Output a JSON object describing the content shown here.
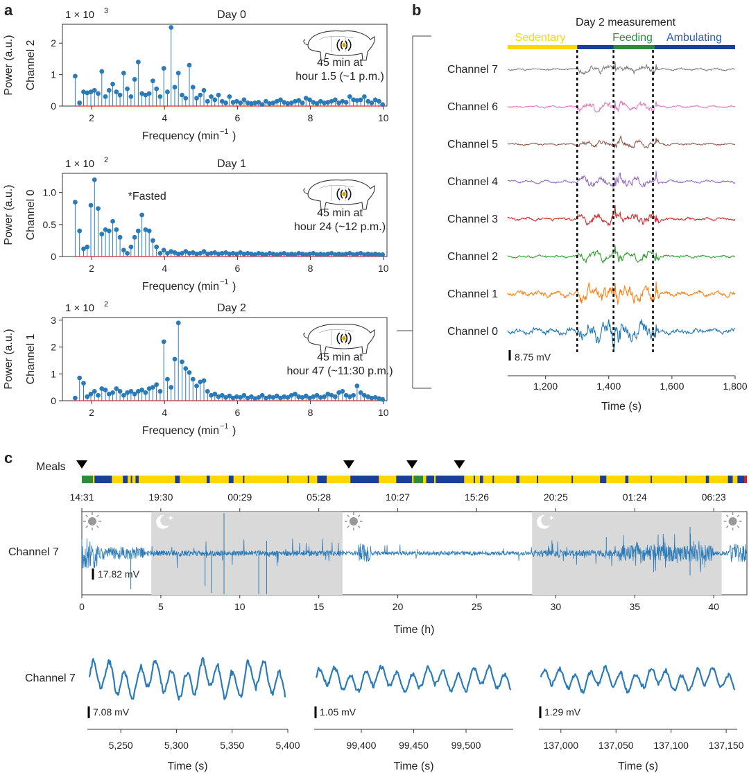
{
  "colors": {
    "stem": "#2b7bb9",
    "baseline": "#d62728",
    "ch7": "#7f7f7f",
    "ch6": "#e377c2",
    "ch5": "#8c564b",
    "ch4": "#9467bd",
    "ch3": "#d62728",
    "ch2": "#2ca02c",
    "ch1": "#ff7f0e",
    "ch0": "#1f77b4",
    "sedentary": "#ffd700",
    "feeding": "#2e8b3a",
    "ambulating": "#1a3f99",
    "night": "#d9d9d9",
    "trace": "#2b7bb9"
  },
  "panel_labels": {
    "a": "a",
    "b": "b",
    "c": "c"
  },
  "chart_data": [
    {
      "id": "a-day0",
      "type": "stem",
      "title": "Day 0",
      "multiplier": "1 × 10",
      "multiplier_exp": "3",
      "ylabel1": "Power (a.u.)",
      "ylabel2": "Channel 2",
      "xlabel": "Frequency (min",
      "xlabel_sup": "−1",
      "xlabel_end": ")",
      "annotation": [
        "45 min at",
        "hour 1.5 (~1 p.m.)"
      ],
      "xlim": [
        1.2,
        10.1
      ],
      "ylim": [
        0,
        2.6
      ],
      "xticks": [
        2,
        4,
        6,
        8,
        10
      ],
      "yticks": [
        0,
        1,
        2
      ],
      "x": [
        1.55,
        1.67,
        1.78,
        1.88,
        1.98,
        2.08,
        2.18,
        2.28,
        2.38,
        2.48,
        2.58,
        2.68,
        2.78,
        2.88,
        2.98,
        3.08,
        3.18,
        3.28,
        3.38,
        3.48,
        3.58,
        3.68,
        3.78,
        3.88,
        3.98,
        4.08,
        4.18,
        4.28,
        4.38,
        4.48,
        4.58,
        4.68,
        4.78,
        4.88,
        4.98,
        5.08,
        5.18,
        5.28,
        5.38,
        5.48,
        5.58,
        5.68,
        5.78,
        5.88,
        5.98,
        6.08,
        6.18,
        6.28,
        6.38,
        6.48,
        6.58,
        6.68,
        6.78,
        6.88,
        6.98,
        7.08,
        7.18,
        7.28,
        7.38,
        7.48,
        7.58,
        7.68,
        7.78,
        7.88,
        7.98,
        8.08,
        8.18,
        8.28,
        8.38,
        8.48,
        8.58,
        8.68,
        8.78,
        8.88,
        8.98,
        9.08,
        9.18,
        9.28,
        9.38,
        9.48,
        9.58,
        9.68,
        9.78,
        9.88,
        9.98
      ],
      "y": [
        0.95,
        0.1,
        0.45,
        0.42,
        0.45,
        0.5,
        0.4,
        1.1,
        0.3,
        0.5,
        0.7,
        0.45,
        0.35,
        1.05,
        0.55,
        0.3,
        0.85,
        1.4,
        0.4,
        0.35,
        0.4,
        0.8,
        0.55,
        0.3,
        1.2,
        0.45,
        2.5,
        0.6,
        1.05,
        0.35,
        0.25,
        1.3,
        0.6,
        0.25,
        0.35,
        0.5,
        0.15,
        0.3,
        0.2,
        0.35,
        0.15,
        0.1,
        0.3,
        0.12,
        0.15,
        0.1,
        0.2,
        0.1,
        0.08,
        0.1,
        0.12,
        0.05,
        0.15,
        0.08,
        0.1,
        0.15,
        0.2,
        0.12,
        0.08,
        0.1,
        0.15,
        0.18,
        0.1,
        0.25,
        0.2,
        0.12,
        0.08,
        0.15,
        0.1,
        0.12,
        0.15,
        0.2,
        0.1,
        0.15,
        0.12,
        0.3,
        0.2,
        0.18,
        0.2,
        0.3,
        0.15,
        0.1,
        0.2,
        0.15,
        0.05
      ]
    },
    {
      "id": "a-day1",
      "type": "stem",
      "title": "Day 1",
      "multiplier": "1 × 10",
      "multiplier_exp": "2",
      "ylabel1": "Power (a.u.)",
      "ylabel2": "Channel 0",
      "xlabel": "Frequency (min",
      "xlabel_sup": "−1",
      "xlabel_end": ")",
      "note": "*Fasted",
      "annotation": [
        "45 min at",
        "hour 24 (~12 p.m.)"
      ],
      "xlim": [
        1.2,
        10.1
      ],
      "ylim": [
        0,
        1.3
      ],
      "xticks": [
        2,
        4,
        6,
        8,
        10
      ],
      "yticks": [
        0,
        0.5,
        1.0
      ],
      "ytick_labels": [
        "0",
        "0.5",
        "1.0"
      ],
      "x": [
        1.55,
        1.67,
        1.78,
        1.88,
        1.98,
        2.08,
        2.18,
        2.28,
        2.38,
        2.48,
        2.58,
        2.68,
        2.78,
        2.88,
        2.98,
        3.08,
        3.18,
        3.28,
        3.38,
        3.48,
        3.58,
        3.68,
        3.78,
        3.88,
        3.98,
        4.08,
        4.18,
        4.28,
        4.38,
        4.48,
        4.58,
        4.68,
        4.78,
        4.88,
        4.98,
        5.08,
        5.18,
        5.28,
        5.38,
        5.48,
        5.58,
        5.68,
        5.78,
        5.88,
        5.98,
        6.08,
        6.18,
        6.28,
        6.38,
        6.48,
        6.58,
        6.68,
        6.78,
        6.88,
        6.98,
        7.08,
        7.18,
        7.28,
        7.38,
        7.48,
        7.58,
        7.68,
        7.78,
        7.88,
        7.98,
        8.08,
        8.18,
        8.28,
        8.38,
        8.48,
        8.58,
        8.68,
        8.78,
        8.88,
        8.98,
        9.08,
        9.18,
        9.28,
        9.38,
        9.48,
        9.58,
        9.68,
        9.78,
        9.88,
        9.98
      ],
      "y": [
        0.85,
        0.4,
        0.12,
        0.15,
        0.8,
        1.2,
        0.75,
        0.35,
        0.42,
        0.4,
        0.55,
        0.42,
        0.3,
        0.1,
        0.05,
        0.15,
        0.3,
        0.4,
        0.65,
        0.42,
        0.4,
        0.25,
        0.15,
        0.05,
        0.1,
        0.05,
        0.08,
        0.06,
        0.04,
        0.05,
        0.08,
        0.05,
        0.06,
        0.04,
        0.05,
        0.08,
        0.04,
        0.05,
        0.06,
        0.04,
        0.05,
        0.06,
        0.04,
        0.05,
        0.04,
        0.06,
        0.04,
        0.05,
        0.04,
        0.03,
        0.05,
        0.04,
        0.03,
        0.05,
        0.04,
        0.03,
        0.04,
        0.05,
        0.03,
        0.04,
        0.03,
        0.05,
        0.04,
        0.03,
        0.04,
        0.05,
        0.03,
        0.04,
        0.03,
        0.04,
        0.05,
        0.03,
        0.04,
        0.03,
        0.04,
        0.05,
        0.03,
        0.04,
        0.05,
        0.03,
        0.04,
        0.03,
        0.04,
        0.03,
        0.03
      ]
    },
    {
      "id": "a-day2",
      "type": "stem",
      "title": "Day 2",
      "multiplier": "1 × 10",
      "multiplier_exp": "2",
      "ylabel1": "Power (a.u.)",
      "ylabel2": "Channel 1",
      "xlabel": "Frequency (min",
      "xlabel_sup": "−1",
      "xlabel_end": ")",
      "annotation": [
        "45 min at",
        "hour 47 (~11:30 p.m.)"
      ],
      "xlim": [
        1.2,
        10.1
      ],
      "ylim": [
        0,
        3.1
      ],
      "xticks": [
        2,
        4,
        6,
        8,
        10
      ],
      "yticks": [
        0,
        1,
        2,
        3
      ],
      "x": [
        1.55,
        1.67,
        1.78,
        1.88,
        1.98,
        2.08,
        2.18,
        2.28,
        2.38,
        2.48,
        2.58,
        2.68,
        2.78,
        2.88,
        2.98,
        3.08,
        3.18,
        3.28,
        3.38,
        3.48,
        3.58,
        3.68,
        3.78,
        3.88,
        3.98,
        4.08,
        4.18,
        4.28,
        4.38,
        4.48,
        4.58,
        4.68,
        4.78,
        4.88,
        4.98,
        5.08,
        5.18,
        5.28,
        5.38,
        5.48,
        5.58,
        5.68,
        5.78,
        5.88,
        5.98,
        6.08,
        6.18,
        6.28,
        6.38,
        6.48,
        6.58,
        6.68,
        6.78,
        6.88,
        6.98,
        7.08,
        7.18,
        7.28,
        7.38,
        7.48,
        7.58,
        7.68,
        7.78,
        7.88,
        7.98,
        8.08,
        8.18,
        8.28,
        8.38,
        8.48,
        8.58,
        8.68,
        8.78,
        8.88,
        8.98,
        9.08,
        9.18,
        9.28,
        9.38,
        9.48,
        9.58,
        9.68,
        9.78,
        9.88,
        9.98
      ],
      "y": [
        0.1,
        0.85,
        0.65,
        0.15,
        0.25,
        0.35,
        0.2,
        0.45,
        0.4,
        0.25,
        0.3,
        0.45,
        0.35,
        0.2,
        0.3,
        0.35,
        0.25,
        0.35,
        0.4,
        0.3,
        0.45,
        0.5,
        0.6,
        0.35,
        2.2,
        0.8,
        0.5,
        1.55,
        2.9,
        1.45,
        1.2,
        1.05,
        0.8,
        0.55,
        0.7,
        0.75,
        0.35,
        0.2,
        0.25,
        0.15,
        0.2,
        0.12,
        0.18,
        0.1,
        0.15,
        0.12,
        0.2,
        0.1,
        0.15,
        0.08,
        0.12,
        0.2,
        0.1,
        0.15,
        0.12,
        0.18,
        0.1,
        0.15,
        0.12,
        0.2,
        0.25,
        0.15,
        0.12,
        0.18,
        0.1,
        0.15,
        0.2,
        0.12,
        0.15,
        0.25,
        0.2,
        0.15,
        0.3,
        0.35,
        0.2,
        0.15,
        0.2,
        0.55,
        0.3,
        0.2,
        0.15,
        0.1,
        0.12,
        0.08,
        0.05
      ]
    },
    {
      "id": "b",
      "type": "line",
      "title": "Day 2 measurement",
      "states": [
        {
          "name": "Sedentary",
          "from": 1080,
          "to": 1300,
          "color": "#ffd700"
        },
        {
          "name": "Feeding",
          "from": 1415,
          "to": 1545,
          "color": "#2e8b3a"
        },
        {
          "name": "Ambulating",
          "from": 1300,
          "to": 1800,
          "color": "#1a3f99"
        }
      ],
      "channels": [
        "Channel 7",
        "Channel 6",
        "Channel 5",
        "Channel 4",
        "Channel 3",
        "Channel 2",
        "Channel 1",
        "Channel 0"
      ],
      "event_lines": [
        1300,
        1415,
        1540
      ],
      "scale_bar": "8.75 mV",
      "xlabel": "Time (s)",
      "xlim": [
        1080,
        1800
      ],
      "xticks": [
        1200,
        1400,
        1600,
        1800
      ],
      "xtick_labels": [
        "1,200",
        "1,400",
        "1,600",
        "1,800"
      ]
    },
    {
      "id": "c-main",
      "type": "line",
      "meals_label": "Meals",
      "meal_times_h": [
        0,
        16.9,
        20.9,
        23.9
      ],
      "clock_labels": [
        "14:31",
        "19:30",
        "00:29",
        "05:28",
        "10:27",
        "15:26",
        "20:25",
        "01:24",
        "06:23"
      ],
      "clock_hours": [
        0,
        5,
        10,
        15,
        20,
        25,
        30,
        35,
        40
      ],
      "night_spans_h": [
        [
          4.4,
          16.5
        ],
        [
          28.5,
          40.5
        ]
      ],
      "channel": "Channel 7",
      "scale_bar": "17.82 mV",
      "xlabel": "Time (h)",
      "xlim": [
        0,
        42.1
      ],
      "xticks": [
        0,
        5,
        10,
        15,
        20,
        25,
        30,
        35,
        40
      ]
    },
    {
      "id": "c-zoom1",
      "type": "line",
      "channel": "Channel 7",
      "scale_bar": "7.08 mV",
      "xlabel": "Time (s)",
      "xlim": [
        5220,
        5400
      ],
      "xticks": [
        5250,
        5300,
        5350,
        5400
      ],
      "xtick_labels": [
        "5,250",
        "5,300",
        "5,350",
        "5,400"
      ]
    },
    {
      "id": "c-zoom2",
      "type": "line",
      "scale_bar": "1.05 mV",
      "xlabel": "Time (s)",
      "xlim": [
        99355,
        99545
      ],
      "xticks": [
        99400,
        99450,
        99500
      ],
      "xtick_labels": [
        "99,400",
        "99,450",
        "99,500"
      ]
    },
    {
      "id": "c-zoom3",
      "type": "line",
      "scale_bar": "1.29 mV",
      "xlabel": "Time (s)",
      "xlim": [
        136980,
        137160
      ],
      "xticks": [
        137000,
        137050,
        137100,
        137150
      ],
      "xtick_labels": [
        "137,000",
        "137,050",
        "137,100",
        "137,150"
      ]
    }
  ]
}
